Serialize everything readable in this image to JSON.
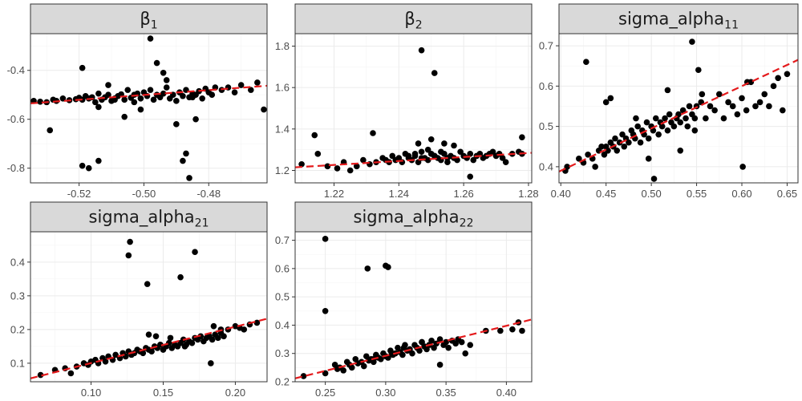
{
  "chart_data": [
    {
      "type": "scatter",
      "title": "β",
      "title_sub": "1",
      "xlabel": "",
      "ylabel": "",
      "xlim": [
        -0.535,
        -0.462
      ],
      "ylim": [
        -0.86,
        -0.25
      ],
      "xticks": [
        -0.52,
        -0.5,
        -0.48
      ],
      "xtick_labels": [
        "-0.52",
        "-0.50",
        "-0.48"
      ],
      "yticks": [
        -0.4,
        -0.6,
        -0.8
      ],
      "ytick_labels": [
        "-0.4",
        "-0.6",
        "-0.8"
      ],
      "grid": true,
      "fit_line": [
        [
          -0.535,
          -0.535
        ],
        [
          -0.462,
          -0.463
        ]
      ],
      "x": [
        -0.534,
        -0.532,
        -0.53,
        -0.528,
        -0.527,
        -0.525,
        -0.523,
        -0.521,
        -0.52,
        -0.519,
        -0.518,
        -0.517,
        -0.516,
        -0.515,
        -0.514,
        -0.513,
        -0.512,
        -0.511,
        -0.51,
        -0.509,
        -0.508,
        -0.507,
        -0.506,
        -0.505,
        -0.504,
        -0.503,
        -0.502,
        -0.501,
        -0.5,
        -0.499,
        -0.498,
        -0.497,
        -0.496,
        -0.495,
        -0.494,
        -0.493,
        -0.492,
        -0.491,
        -0.49,
        -0.489,
        -0.488,
        -0.487,
        -0.486,
        -0.485,
        -0.484,
        -0.483,
        -0.482,
        -0.481,
        -0.48,
        -0.479,
        -0.478,
        -0.476,
        -0.474,
        -0.472,
        -0.47,
        -0.467,
        -0.465,
        -0.463,
        -0.529,
        -0.519,
        -0.517,
        -0.514,
        -0.519,
        -0.514,
        -0.498,
        -0.496,
        -0.494,
        -0.493,
        -0.49,
        -0.488,
        -0.487,
        -0.486,
        -0.484,
        -0.485,
        -0.511,
        -0.509,
        -0.506,
        -0.503,
        -0.501
      ],
      "y": [
        -0.525,
        -0.528,
        -0.53,
        -0.52,
        -0.525,
        -0.515,
        -0.522,
        -0.518,
        -0.512,
        -0.52,
        -0.505,
        -0.515,
        -0.51,
        -0.53,
        -0.495,
        -0.52,
        -0.51,
        -0.5,
        -0.525,
        -0.515,
        -0.505,
        -0.498,
        -0.52,
        -0.48,
        -0.512,
        -0.5,
        -0.495,
        -0.515,
        -0.49,
        -0.505,
        -0.48,
        -0.52,
        -0.5,
        -0.51,
        -0.495,
        -0.47,
        -0.515,
        -0.5,
        -0.525,
        -0.49,
        -0.505,
        -0.48,
        -0.51,
        -0.495,
        -0.5,
        -0.485,
        -0.515,
        -0.475,
        -0.49,
        -0.5,
        -0.47,
        -0.48,
        -0.47,
        -0.49,
        -0.46,
        -0.48,
        -0.45,
        -0.56,
        -0.645,
        -0.79,
        -0.8,
        -0.77,
        -0.39,
        -0.55,
        -0.27,
        -0.37,
        -0.41,
        -0.44,
        -0.62,
        -0.77,
        -0.74,
        -0.84,
        -0.6,
        -0.51,
        -0.46,
        -0.52,
        -0.59,
        -0.53,
        -0.56
      ]
    },
    {
      "type": "scatter",
      "title": "β",
      "title_sub": "2",
      "xlabel": "",
      "ylabel": "",
      "xlim": [
        1.208,
        1.281
      ],
      "ylim": [
        1.14,
        1.86
      ],
      "xticks": [
        1.22,
        1.24,
        1.26,
        1.28
      ],
      "xtick_labels": [
        "1.22",
        "1.24",
        "1.26",
        "1.28"
      ],
      "yticks": [
        1.2,
        1.4,
        1.6,
        1.8
      ],
      "ytick_labels": [
        "1.2",
        "1.4",
        "1.6",
        "1.8"
      ],
      "grid": true,
      "fit_line": [
        [
          1.208,
          1.215
        ],
        [
          1.281,
          1.285
        ]
      ],
      "x": [
        1.21,
        1.215,
        1.218,
        1.221,
        1.223,
        1.225,
        1.227,
        1.229,
        1.231,
        1.233,
        1.235,
        1.236,
        1.237,
        1.238,
        1.239,
        1.24,
        1.241,
        1.242,
        1.243,
        1.244,
        1.245,
        1.246,
        1.247,
        1.248,
        1.249,
        1.25,
        1.251,
        1.252,
        1.253,
        1.254,
        1.255,
        1.256,
        1.257,
        1.258,
        1.259,
        1.26,
        1.261,
        1.262,
        1.263,
        1.264,
        1.265,
        1.266,
        1.267,
        1.268,
        1.269,
        1.27,
        1.271,
        1.272,
        1.273,
        1.275,
        1.277,
        1.278,
        1.243,
        1.245,
        1.247,
        1.249,
        1.251,
        1.253,
        1.255,
        1.257,
        1.246,
        1.25,
        1.254,
        1.214,
        1.232,
        1.247,
        1.251,
        1.262,
        1.278
      ],
      "y": [
        1.23,
        1.28,
        1.22,
        1.21,
        1.24,
        1.2,
        1.22,
        1.25,
        1.23,
        1.24,
        1.26,
        1.25,
        1.24,
        1.27,
        1.25,
        1.26,
        1.24,
        1.28,
        1.26,
        1.25,
        1.27,
        1.24,
        1.29,
        1.26,
        1.25,
        1.28,
        1.27,
        1.26,
        1.25,
        1.28,
        1.24,
        1.27,
        1.26,
        1.25,
        1.29,
        1.27,
        1.26,
        1.28,
        1.25,
        1.27,
        1.28,
        1.26,
        1.27,
        1.28,
        1.29,
        1.27,
        1.28,
        1.26,
        1.24,
        1.28,
        1.29,
        1.28,
        1.27,
        1.28,
        1.26,
        1.3,
        1.27,
        1.29,
        1.26,
        1.32,
        1.33,
        1.35,
        1.33,
        1.37,
        1.38,
        1.78,
        1.67,
        1.17,
        1.36
      ]
    },
    {
      "type": "scatter",
      "title": "sigma_alpha",
      "title_sub": "11",
      "xlabel": "",
      "ylabel": "",
      "xlim": [
        0.398,
        0.662
      ],
      "ylim": [
        0.36,
        0.73
      ],
      "xticks": [
        0.4,
        0.45,
        0.5,
        0.55,
        0.6,
        0.65
      ],
      "xtick_labels": [
        "0.40",
        "0.45",
        "0.50",
        "0.55",
        "0.60",
        "0.65"
      ],
      "yticks": [
        0.4,
        0.5,
        0.6,
        0.7
      ],
      "ytick_labels": [
        "0.4",
        "0.5",
        "0.6",
        "0.7"
      ],
      "grid": true,
      "fit_line": [
        [
          0.398,
          0.388
        ],
        [
          0.662,
          0.665
        ]
      ],
      "x": [
        0.405,
        0.407,
        0.42,
        0.425,
        0.43,
        0.435,
        0.438,
        0.442,
        0.445,
        0.448,
        0.45,
        0.452,
        0.455,
        0.458,
        0.46,
        0.462,
        0.465,
        0.468,
        0.47,
        0.472,
        0.475,
        0.478,
        0.48,
        0.482,
        0.485,
        0.488,
        0.49,
        0.492,
        0.495,
        0.497,
        0.5,
        0.502,
        0.505,
        0.508,
        0.51,
        0.512,
        0.515,
        0.518,
        0.52,
        0.522,
        0.525,
        0.528,
        0.53,
        0.532,
        0.535,
        0.538,
        0.54,
        0.542,
        0.545,
        0.548,
        0.55,
        0.555,
        0.56,
        0.565,
        0.57,
        0.575,
        0.58,
        0.585,
        0.59,
        0.595,
        0.6,
        0.605,
        0.61,
        0.615,
        0.62,
        0.625,
        0.63,
        0.635,
        0.64,
        0.645,
        0.65,
        0.428,
        0.45,
        0.455,
        0.483,
        0.497,
        0.503,
        0.518,
        0.532,
        0.545,
        0.548,
        0.552,
        0.556,
        0.601,
        0.606
      ],
      "y": [
        0.39,
        0.4,
        0.42,
        0.41,
        0.43,
        0.42,
        0.4,
        0.44,
        0.45,
        0.43,
        0.45,
        0.44,
        0.46,
        0.45,
        0.47,
        0.44,
        0.46,
        0.48,
        0.45,
        0.47,
        0.46,
        0.49,
        0.48,
        0.47,
        0.5,
        0.46,
        0.49,
        0.48,
        0.51,
        0.47,
        0.5,
        0.49,
        0.52,
        0.48,
        0.51,
        0.5,
        0.52,
        0.49,
        0.53,
        0.51,
        0.5,
        0.52,
        0.53,
        0.51,
        0.54,
        0.52,
        0.5,
        0.55,
        0.53,
        0.52,
        0.55,
        0.56,
        0.52,
        0.55,
        0.54,
        0.58,
        0.52,
        0.56,
        0.55,
        0.53,
        0.57,
        0.54,
        0.61,
        0.55,
        0.56,
        0.58,
        0.55,
        0.6,
        0.62,
        0.54,
        0.63,
        0.66,
        0.56,
        0.57,
        0.52,
        0.42,
        0.37,
        0.59,
        0.44,
        0.71,
        0.49,
        0.64,
        0.58,
        0.4,
        0.61
      ]
    },
    {
      "type": "scatter",
      "title": "sigma_alpha",
      "title_sub": "21",
      "xlabel": "",
      "ylabel": "",
      "xlim": [
        0.058,
        0.222
      ],
      "ylim": [
        0.045,
        0.49
      ],
      "xticks": [
        0.1,
        0.15,
        0.2
      ],
      "xtick_labels": [
        "0.10",
        "0.15",
        "0.20"
      ],
      "yticks": [
        0.1,
        0.2,
        0.3,
        0.4
      ],
      "ytick_labels": [
        "0.1",
        "0.2",
        "0.3",
        "0.4"
      ],
      "grid": true,
      "fit_line": [
        [
          0.058,
          0.055
        ],
        [
          0.222,
          0.232
        ]
      ],
      "x": [
        0.065,
        0.075,
        0.082,
        0.086,
        0.09,
        0.095,
        0.098,
        0.1,
        0.103,
        0.105,
        0.108,
        0.11,
        0.112,
        0.115,
        0.117,
        0.12,
        0.122,
        0.124,
        0.126,
        0.128,
        0.13,
        0.132,
        0.134,
        0.136,
        0.138,
        0.14,
        0.142,
        0.144,
        0.146,
        0.148,
        0.15,
        0.152,
        0.154,
        0.156,
        0.158,
        0.16,
        0.162,
        0.164,
        0.166,
        0.168,
        0.17,
        0.172,
        0.174,
        0.176,
        0.178,
        0.18,
        0.182,
        0.184,
        0.186,
        0.188,
        0.19,
        0.192,
        0.195,
        0.2,
        0.203,
        0.206,
        0.21,
        0.215,
        0.14,
        0.145,
        0.155,
        0.165,
        0.185,
        0.19,
        0.126,
        0.127,
        0.139,
        0.162,
        0.172,
        0.183
      ],
      "y": [
        0.065,
        0.08,
        0.085,
        0.07,
        0.09,
        0.1,
        0.095,
        0.105,
        0.11,
        0.1,
        0.115,
        0.105,
        0.12,
        0.11,
        0.125,
        0.115,
        0.13,
        0.12,
        0.135,
        0.125,
        0.13,
        0.14,
        0.135,
        0.13,
        0.145,
        0.14,
        0.135,
        0.15,
        0.145,
        0.155,
        0.14,
        0.15,
        0.16,
        0.145,
        0.155,
        0.15,
        0.16,
        0.17,
        0.155,
        0.165,
        0.16,
        0.175,
        0.17,
        0.18,
        0.165,
        0.175,
        0.18,
        0.17,
        0.185,
        0.175,
        0.19,
        0.18,
        0.2,
        0.21,
        0.205,
        0.2,
        0.215,
        0.22,
        0.185,
        0.18,
        0.175,
        0.15,
        0.21,
        0.2,
        0.42,
        0.46,
        0.335,
        0.355,
        0.43,
        0.1
      ]
    },
    {
      "type": "scatter",
      "title": "sigma_alpha",
      "title_sub": "22",
      "xlabel": "",
      "ylabel": "",
      "xlim": [
        0.225,
        0.421
      ],
      "ylim": [
        0.2,
        0.73
      ],
      "xticks": [
        0.25,
        0.3,
        0.35,
        0.4
      ],
      "xtick_labels": [
        "0.25",
        "0.30",
        "0.35",
        "0.40"
      ],
      "yticks": [
        0.2,
        0.3,
        0.4,
        0.5,
        0.6,
        0.7
      ],
      "ytick_labels": [
        "0.2",
        "0.3",
        "0.4",
        "0.5",
        "0.6",
        "0.7"
      ],
      "grid": true,
      "fit_line": [
        [
          0.225,
          0.212
        ],
        [
          0.421,
          0.42
        ]
      ],
      "x": [
        0.232,
        0.25,
        0.258,
        0.262,
        0.265,
        0.268,
        0.27,
        0.272,
        0.275,
        0.277,
        0.28,
        0.282,
        0.284,
        0.286,
        0.288,
        0.29,
        0.292,
        0.294,
        0.296,
        0.298,
        0.3,
        0.302,
        0.304,
        0.306,
        0.308,
        0.31,
        0.312,
        0.314,
        0.316,
        0.318,
        0.32,
        0.322,
        0.324,
        0.326,
        0.328,
        0.33,
        0.332,
        0.334,
        0.336,
        0.338,
        0.34,
        0.342,
        0.345,
        0.348,
        0.35,
        0.352,
        0.355,
        0.358,
        0.36,
        0.363,
        0.366,
        0.37,
        0.383,
        0.395,
        0.405,
        0.41,
        0.413,
        0.26,
        0.29,
        0.305,
        0.315,
        0.33,
        0.345,
        0.25,
        0.25,
        0.285,
        0.3,
        0.302
      ],
      "y": [
        0.22,
        0.23,
        0.26,
        0.25,
        0.24,
        0.27,
        0.26,
        0.25,
        0.28,
        0.265,
        0.27,
        0.255,
        0.29,
        0.275,
        0.28,
        0.27,
        0.295,
        0.285,
        0.28,
        0.3,
        0.29,
        0.285,
        0.31,
        0.295,
        0.3,
        0.32,
        0.305,
        0.295,
        0.33,
        0.31,
        0.315,
        0.3,
        0.33,
        0.32,
        0.31,
        0.34,
        0.325,
        0.315,
        0.33,
        0.345,
        0.32,
        0.335,
        0.35,
        0.33,
        0.34,
        0.32,
        0.345,
        0.335,
        0.35,
        0.34,
        0.3,
        0.33,
        0.38,
        0.38,
        0.385,
        0.41,
        0.38,
        0.245,
        0.28,
        0.3,
        0.32,
        0.34,
        0.26,
        0.705,
        0.45,
        0.6,
        0.61,
        0.605
      ]
    }
  ]
}
